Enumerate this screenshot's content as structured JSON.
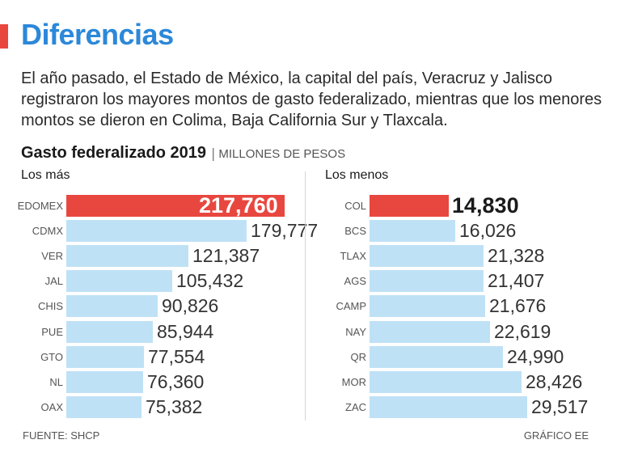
{
  "header": {
    "title": "Diferencias",
    "intro": "El año pasado, el Estado de México, la capital del país, Veracruz y Jalisco registraron los mayores montos de gasto federalizado, mientras que los menores montos se dieron en Colima, Baja California Sur y Tlaxcala."
  },
  "chart_header": {
    "title": "Gasto federalizado 2019",
    "separator": "|",
    "unit": "MILLONES DE PESOS"
  },
  "colors": {
    "accent": "#e8473f",
    "title": "#2c88d9",
    "bar": "#bfe1f6",
    "highlight": "#e8473f"
  },
  "chart_data": [
    {
      "type": "bar",
      "orientation": "horizontal",
      "title": "Los más",
      "categories": [
        "EDOMEX",
        "CDMX",
        "VER",
        "JAL",
        "CHIS",
        "PUE",
        "GTO",
        "NL",
        "OAX"
      ],
      "values": [
        217760,
        179777,
        121387,
        105432,
        90826,
        85944,
        77554,
        76360,
        75382
      ],
      "labels": [
        "217,760",
        "179,777",
        "121,387",
        "105,432",
        "90,826",
        "85,944",
        "77,554",
        "76,360",
        "75,382"
      ],
      "highlight_index": 0
    },
    {
      "type": "bar",
      "orientation": "horizontal",
      "title": "Los menos",
      "categories": [
        "COL",
        "BCS",
        "TLAX",
        "AGS",
        "CAMP",
        "NAY",
        "QR",
        "MOR",
        "ZAC"
      ],
      "values": [
        14830,
        16026,
        21328,
        21407,
        21676,
        22619,
        24990,
        28426,
        29517
      ],
      "labels": [
        "14,830",
        "16,026",
        "21,328",
        "21,407",
        "21,676",
        "22,619",
        "24,990",
        "28,426",
        "29,517"
      ],
      "highlight_index": 0
    }
  ],
  "footer": {
    "source": "FUENTE: SHCP",
    "credit": "GRÁFICO EE"
  }
}
